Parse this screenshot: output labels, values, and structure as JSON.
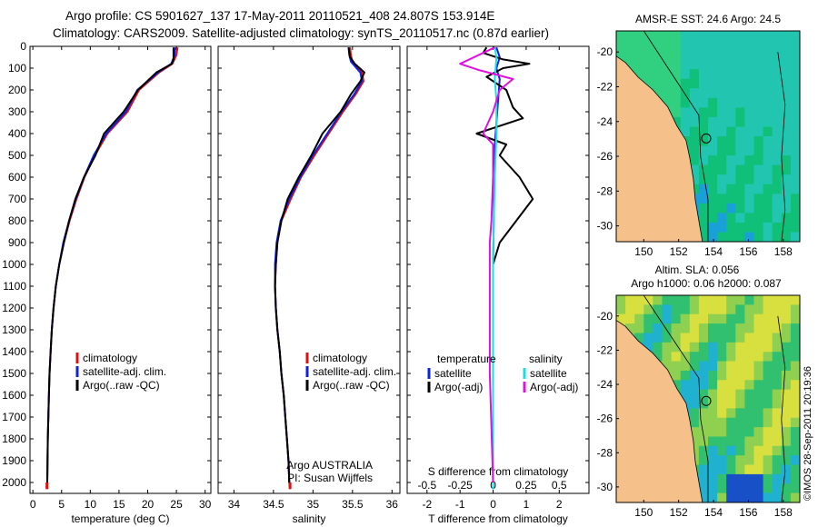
{
  "header": {
    "line1": "Argo profile: CS 5901627_137 17-May-2011 20110521_408 24.807S 153.914E",
    "line2": "Climatology: CARS2009. Satellite-adjusted climatology: synTS_20110517.nc (0.87d earlier)"
  },
  "credit": "©IMOS 28-Sep-2011 20:19:36",
  "colors": {
    "climatology": "#e01010",
    "satellite": "#1020e0",
    "argo": "#000000",
    "salinity_satellite": "#19e0e0",
    "salinity_argo": "#e010e0",
    "land": "#f5c08a"
  },
  "chart_data": [
    {
      "id": "temperature",
      "type": "line",
      "xlabel": "temperature (deg C)",
      "ylabel": "",
      "xlim": [
        -0.5,
        31
      ],
      "ylim": [
        2050,
        0
      ],
      "x_ticks": [
        "0",
        "5",
        "10",
        "15",
        "20",
        "25",
        "30"
      ],
      "y_ticks": [
        "0",
        "100",
        "200",
        "300",
        "400",
        "500",
        "600",
        "700",
        "800",
        "900",
        "1000",
        "1100",
        "1200",
        "1300",
        "1400",
        "1500",
        "1600",
        "1700",
        "1800",
        "1900",
        "2000"
      ],
      "legend": [
        "climatology",
        "satellite-adj. clim.",
        "Argo(..raw -QC)"
      ],
      "series": [
        {
          "name": "climatology",
          "color_key": "climatology",
          "points": [
            [
              25.2,
              5
            ],
            [
              25,
              40
            ],
            [
              24.3,
              80
            ],
            [
              22,
              120
            ],
            [
              18.5,
              200
            ],
            [
              16.5,
              300
            ],
            [
              13,
              400
            ],
            [
              10.8,
              500
            ],
            [
              9,
              600
            ],
            [
              7.6,
              700
            ],
            [
              6.4,
              800
            ],
            [
              5.4,
              900
            ],
            [
              4.6,
              1000
            ],
            [
              4,
              1100
            ],
            [
              3.6,
              1200
            ],
            [
              3.3,
              1300
            ],
            [
              3.1,
              1400
            ],
            [
              2.9,
              1500
            ],
            [
              2.8,
              1600
            ],
            [
              2.7,
              1700
            ],
            [
              2.6,
              1800
            ],
            [
              2.55,
              1900
            ],
            [
              2.5,
              2000
            ],
            [
              2.45,
              2030
            ]
          ]
        },
        {
          "name": "satellite-adj. clim.",
          "color_key": "satellite",
          "points": [
            [
              24.8,
              5
            ],
            [
              24.7,
              40
            ],
            [
              24.1,
              80
            ],
            [
              21.8,
              120
            ],
            [
              18.2,
              200
            ],
            [
              16.2,
              300
            ],
            [
              12.8,
              400
            ],
            [
              10.6,
              500
            ],
            [
              8.9,
              600
            ],
            [
              7.5,
              700
            ],
            [
              6.3,
              800
            ],
            [
              5.3,
              900
            ],
            [
              4.6,
              1000
            ],
            [
              4,
              1100
            ],
            [
              3.6,
              1200
            ],
            [
              3.3,
              1300
            ],
            [
              3.1,
              1400
            ],
            [
              2.9,
              1500
            ],
            [
              2.8,
              1600
            ],
            [
              2.7,
              1700
            ],
            [
              2.6,
              1800
            ],
            [
              2.55,
              1900
            ],
            [
              2.5,
              2000
            ],
            [
              2.45,
              2030
            ]
          ]
        },
        {
          "name": "Argo(..raw -QC)",
          "color_key": "argo",
          "points": [
            [
              24.5,
              5
            ],
            [
              24.5,
              60
            ],
            [
              24.2,
              80
            ],
            [
              21.5,
              120
            ],
            [
              18.3,
              200
            ],
            [
              15.8,
              300
            ],
            [
              12.4,
              400
            ],
            [
              10.9,
              500
            ],
            [
              8.9,
              600
            ],
            [
              7.4,
              700
            ],
            [
              6.3,
              800
            ],
            [
              5.4,
              900
            ],
            [
              4.6,
              1000
            ],
            [
              4,
              1100
            ],
            [
              3.6,
              1200
            ],
            [
              3.3,
              1300
            ],
            [
              3.1,
              1400
            ],
            [
              2.9,
              1500
            ],
            [
              2.8,
              1600
            ],
            [
              2.7,
              1700
            ],
            [
              2.6,
              1800
            ],
            [
              2.55,
              1900
            ],
            [
              2.5,
              2000
            ]
          ]
        }
      ]
    },
    {
      "id": "salinity",
      "type": "line",
      "xlabel": "salinity",
      "xlim": [
        33.8,
        36.1
      ],
      "ylim": [
        2050,
        0
      ],
      "x_ticks": [
        "34",
        "34.5",
        "35",
        "35.5",
        "36"
      ],
      "legend": [
        "climatology",
        "satellite-adj. clim.",
        "Argo(..raw -QC)"
      ],
      "annotation": [
        "Argo AUSTRALIA",
        "PI: Susan Wijffels"
      ],
      "series": [
        {
          "name": "climatology",
          "color_key": "climatology",
          "points": [
            [
              35.47,
              5
            ],
            [
              35.48,
              40
            ],
            [
              35.5,
              70
            ],
            [
              35.62,
              120
            ],
            [
              35.64,
              160
            ],
            [
              35.54,
              220
            ],
            [
              35.38,
              300
            ],
            [
              35.2,
              400
            ],
            [
              35.02,
              500
            ],
            [
              34.85,
              600
            ],
            [
              34.72,
              700
            ],
            [
              34.6,
              800
            ],
            [
              34.55,
              900
            ],
            [
              34.53,
              1000
            ],
            [
              34.52,
              1100
            ],
            [
              34.53,
              1200
            ],
            [
              34.55,
              1300
            ],
            [
              34.58,
              1400
            ],
            [
              34.6,
              1500
            ],
            [
              34.63,
              1600
            ],
            [
              34.65,
              1700
            ],
            [
              34.67,
              1800
            ],
            [
              34.69,
              1900
            ],
            [
              34.7,
              2000
            ],
            [
              34.71,
              2030
            ]
          ]
        },
        {
          "name": "satellite-adj. clim.",
          "color_key": "satellite",
          "points": [
            [
              35.45,
              5
            ],
            [
              35.46,
              40
            ],
            [
              35.48,
              70
            ],
            [
              35.6,
              120
            ],
            [
              35.62,
              160
            ],
            [
              35.52,
              220
            ],
            [
              35.36,
              300
            ],
            [
              35.18,
              400
            ],
            [
              35.0,
              500
            ],
            [
              34.84,
              600
            ],
            [
              34.7,
              700
            ],
            [
              34.59,
              800
            ],
            [
              34.54,
              900
            ],
            [
              34.52,
              1000
            ],
            [
              34.52,
              1100
            ],
            [
              34.53,
              1200
            ],
            [
              34.55,
              1300
            ],
            [
              34.58,
              1400
            ],
            [
              34.6,
              1500
            ],
            [
              34.63,
              1600
            ],
            [
              34.65,
              1700
            ],
            [
              34.67,
              1800
            ],
            [
              34.69,
              1900
            ],
            [
              34.7,
              2000
            ],
            [
              34.71,
              2030
            ]
          ]
        },
        {
          "name": "Argo(..raw -QC)",
          "color_key": "argo",
          "points": [
            [
              35.45,
              5
            ],
            [
              35.47,
              50
            ],
            [
              35.53,
              80
            ],
            [
              35.65,
              120
            ],
            [
              35.6,
              160
            ],
            [
              35.48,
              220
            ],
            [
              35.35,
              300
            ],
            [
              35.12,
              400
            ],
            [
              34.98,
              500
            ],
            [
              34.82,
              600
            ],
            [
              34.68,
              700
            ],
            [
              34.6,
              800
            ],
            [
              34.55,
              900
            ],
            [
              34.53,
              1000
            ],
            [
              34.52,
              1100
            ],
            [
              34.53,
              1200
            ],
            [
              34.55,
              1300
            ],
            [
              34.58,
              1400
            ],
            [
              34.6,
              1500
            ],
            [
              34.63,
              1600
            ],
            [
              34.65,
              1700
            ],
            [
              34.67,
              1800
            ],
            [
              34.69,
              1900
            ],
            [
              34.7,
              2000
            ]
          ]
        }
      ]
    },
    {
      "id": "difference",
      "type": "line",
      "xlabel": "T difference from climatology",
      "xlabel_top": "S difference from climatology",
      "xlim": [
        -2.6,
        2.9
      ],
      "ylim": [
        2050,
        0
      ],
      "x_ticks": [
        "-2",
        "-1",
        "0",
        "1",
        "2"
      ],
      "x_ticks_top": [
        "-0.5",
        "-0.25",
        "0",
        "0.25",
        "0.5"
      ],
      "legend_groups": [
        {
          "title": "temperature",
          "items": [
            "satellite",
            "Argo(-adj)"
          ]
        },
        {
          "title": "salinity",
          "items": [
            "satellite",
            "Argo(-adj)"
          ]
        }
      ],
      "series": [
        {
          "name": "temperature satellite",
          "color_key": "satellite",
          "points": [
            [
              0.1,
              5
            ],
            [
              0.2,
              50
            ],
            [
              0.1,
              100
            ],
            [
              0.2,
              150
            ],
            [
              0.15,
              250
            ],
            [
              0.1,
              350
            ],
            [
              0.05,
              450
            ],
            [
              0.03,
              600
            ],
            [
              0.02,
              800
            ],
            [
              0,
              1000
            ],
            [
              0,
              1500
            ],
            [
              0,
              2030
            ]
          ]
        },
        {
          "name": "temperature Argo(-adj)",
          "color_key": "argo",
          "points": [
            [
              -0.2,
              5
            ],
            [
              -0.3,
              30
            ],
            [
              0.3,
              60
            ],
            [
              1.1,
              80
            ],
            [
              0.3,
              100
            ],
            [
              -0.2,
              140
            ],
            [
              0.4,
              200
            ],
            [
              0.6,
              280
            ],
            [
              0.9,
              330
            ],
            [
              -0.5,
              400
            ],
            [
              0.4,
              450
            ],
            [
              0.2,
              500
            ],
            [
              0.8,
              600
            ],
            [
              1.2,
              700
            ],
            [
              0.7,
              800
            ],
            [
              0.2,
              900
            ],
            [
              0,
              1000
            ],
            [
              0,
              1500
            ],
            [
              0,
              2000
            ]
          ]
        },
        {
          "name": "salinity satellite",
          "color_key": "salinity_satellite",
          "points": [
            [
              0.05,
              5
            ],
            [
              0.1,
              50
            ],
            [
              0.05,
              150
            ],
            [
              0.1,
              250
            ],
            [
              0.1,
              400
            ],
            [
              0.05,
              600
            ],
            [
              0.02,
              800
            ],
            [
              0,
              1000
            ],
            [
              0,
              1500
            ],
            [
              0,
              2030
            ]
          ]
        },
        {
          "name": "salinity Argo(-adj)",
          "color_key": "salinity_argo",
          "points": [
            [
              0.05,
              5
            ],
            [
              -1.0,
              80
            ],
            [
              -0.4,
              110
            ],
            [
              0.6,
              150
            ],
            [
              0.2,
              200
            ],
            [
              0,
              300
            ],
            [
              -0.3,
              400
            ],
            [
              0,
              450
            ],
            [
              0,
              600
            ],
            [
              -0.05,
              800
            ],
            [
              -0.1,
              900
            ],
            [
              -0.1,
              1500
            ],
            [
              0,
              2000
            ]
          ]
        }
      ]
    }
  ],
  "maps": [
    {
      "id": "sst-map",
      "title": "AMSR-E SST: 24.6 Argo: 24.5",
      "x_ticks": [
        "150",
        "152",
        "154",
        "156",
        "158"
      ],
      "y_ticks": [
        "-20",
        "-22",
        "-24",
        "-26",
        "-28",
        "-30"
      ]
    },
    {
      "id": "sla-map",
      "title_line1": "Altim. SLA: 0.056",
      "title_line2": "Argo h1000: 0.06 h2000: 0.087",
      "x_ticks": [
        "150",
        "152",
        "154",
        "156",
        "158"
      ],
      "y_ticks": [
        "-20",
        "-22",
        "-24",
        "-26",
        "-28",
        "-30"
      ]
    }
  ]
}
